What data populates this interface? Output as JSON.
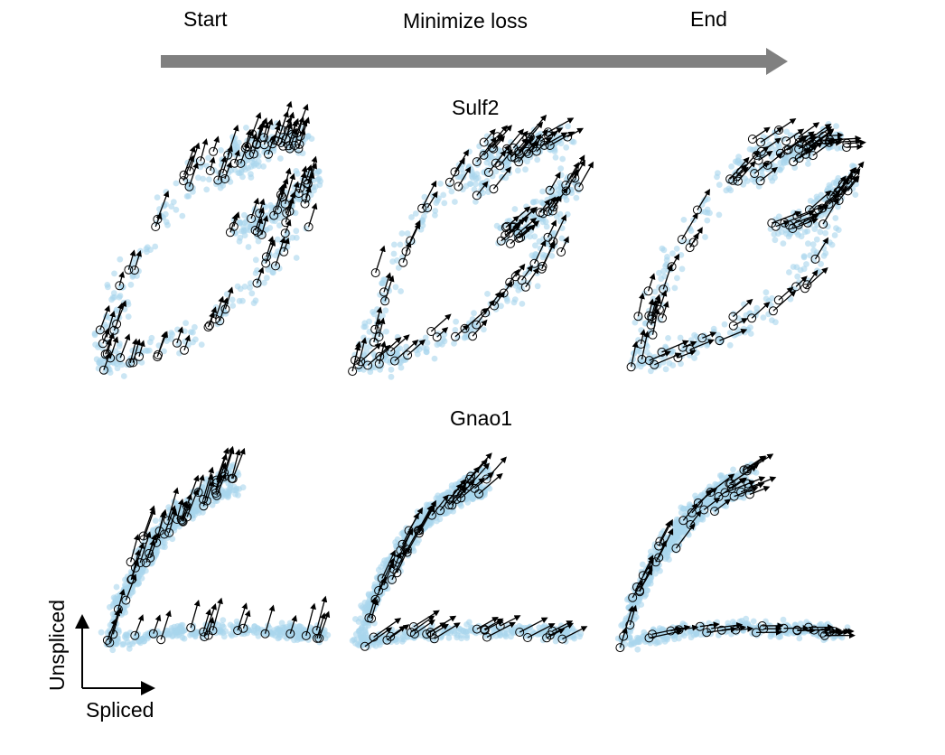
{
  "header": {
    "start_label": "Start",
    "middle_label": "Minimize loss",
    "end_label": "End",
    "arrow_color": "#808080"
  },
  "rows": [
    {
      "gene": "Sulf2",
      "panels": [
        "start",
        "middle",
        "end"
      ]
    },
    {
      "gene": "Gnao1",
      "panels": [
        "start",
        "middle",
        "end"
      ]
    }
  ],
  "axes": {
    "x_label": "Spliced",
    "y_label": "Unspliced"
  },
  "colors": {
    "cell_points": "#a9d6ec",
    "velocity_arrows": "#000000",
    "highlight_rings": "#000000"
  }
}
